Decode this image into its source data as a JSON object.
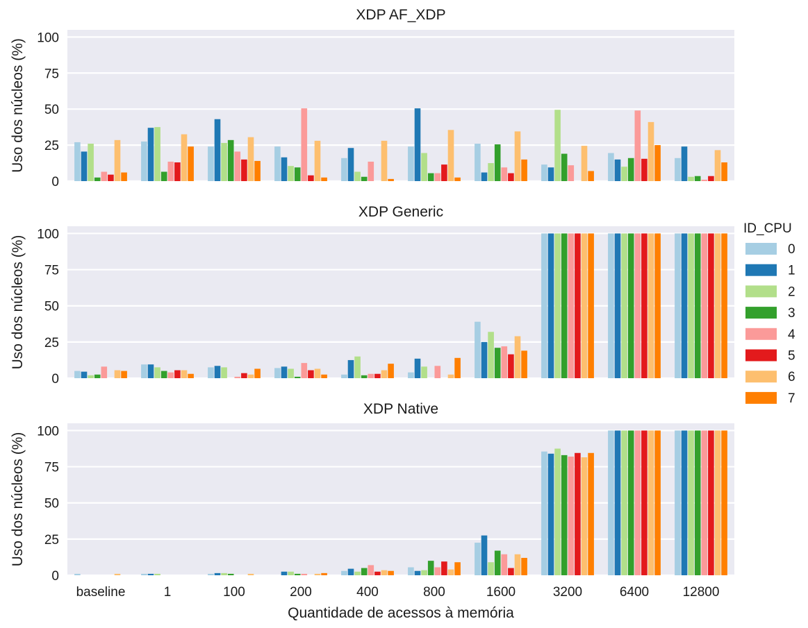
{
  "chart_data": {
    "type": "bar",
    "xlabel": "Quantidade de acessos à memória",
    "ylabel": "Uso dos núcleos (%)",
    "categories": [
      "baseline",
      "1",
      "100",
      "200",
      "400",
      "800",
      "1600",
      "3200",
      "6400",
      "12800"
    ],
    "ylim": [
      0,
      105
    ],
    "yticks": [
      0,
      25,
      50,
      75,
      100
    ],
    "grid": true,
    "legend": {
      "title": "ID_CPU",
      "placement": "right",
      "entries": [
        "0",
        "1",
        "2",
        "3",
        "4",
        "5",
        "6",
        "7"
      ],
      "colors": [
        "#a6cee3",
        "#1f78b4",
        "#b2df8a",
        "#33a02c",
        "#fb9a99",
        "#e31a1c",
        "#fdbf6f",
        "#ff7f00"
      ]
    },
    "panels": [
      {
        "title": "XDP AF_XDP",
        "series": [
          {
            "name": "0",
            "values": [
              27,
              27.5,
              24,
              24,
              16,
              24,
              26,
              11.5,
              19.5,
              16
            ]
          },
          {
            "name": "1",
            "values": [
              20.5,
              37,
              43,
              16.5,
              23,
              50.5,
              6,
              9.5,
              15,
              24
            ]
          },
          {
            "name": "2",
            "values": [
              26,
              37.5,
              26.5,
              10.5,
              6.5,
              19.5,
              12.5,
              49.5,
              10,
              3
            ]
          },
          {
            "name": "3",
            "values": [
              2.5,
              6.5,
              28.5,
              9.5,
              3,
              5.5,
              25.5,
              19,
              16,
              3.5
            ]
          },
          {
            "name": "4",
            "values": [
              6.5,
              13.5,
              20.5,
              50.5,
              13.5,
              5.5,
              9.5,
              11,
              49,
              1
            ]
          },
          {
            "name": "5",
            "values": [
              4.5,
              13,
              15,
              4,
              0,
              11.5,
              5.5,
              0,
              15.5,
              3.5
            ]
          },
          {
            "name": "6",
            "values": [
              28.5,
              32.5,
              30.5,
              28,
              28,
              35.5,
              34.5,
              24.5,
              41,
              21.5
            ]
          },
          {
            "name": "7",
            "values": [
              6,
              24,
              14,
              2.5,
              1.5,
              2.5,
              15,
              7,
              25,
              13
            ]
          }
        ]
      },
      {
        "title": "XDP Generic",
        "series": [
          {
            "name": "0",
            "values": [
              5,
              9.5,
              7.5,
              7,
              2.5,
              4,
              39,
              100,
              100,
              100
            ]
          },
          {
            "name": "1",
            "values": [
              4.5,
              9.5,
              8.5,
              8,
              12.5,
              13.5,
              25,
              100,
              100,
              100
            ]
          },
          {
            "name": "2",
            "values": [
              2,
              7.5,
              7.5,
              6.5,
              15,
              8,
              32,
              100,
              100,
              100
            ]
          },
          {
            "name": "3",
            "values": [
              2.5,
              5,
              0,
              1,
              2,
              0,
              21,
              100,
              100,
              100
            ]
          },
          {
            "name": "4",
            "values": [
              8,
              4,
              1,
              10.5,
              3,
              8.5,
              22,
              100,
              100,
              100
            ]
          },
          {
            "name": "5",
            "values": [
              0,
              5.5,
              3.5,
              5.5,
              3,
              0,
              16.5,
              100,
              100,
              100
            ]
          },
          {
            "name": "6",
            "values": [
              5.5,
              5.5,
              2.5,
              6.5,
              5.5,
              2.5,
              29,
              100,
              100,
              100
            ]
          },
          {
            "name": "7",
            "values": [
              5,
              3,
              6.5,
              2.5,
              10,
              14,
              19,
              100,
              100,
              100
            ]
          }
        ]
      },
      {
        "title": "XDP Native",
        "series": [
          {
            "name": "0",
            "values": [
              1,
              1,
              1,
              0,
              3,
              5.5,
              22.5,
              85.5,
              100,
              100
            ]
          },
          {
            "name": "1",
            "values": [
              0,
              1,
              1.5,
              2.5,
              4.5,
              3,
              27.5,
              84,
              100,
              100
            ]
          },
          {
            "name": "2",
            "values": [
              0,
              1,
              1.5,
              2.5,
              2.5,
              3.5,
              9,
              87.5,
              100,
              100
            ]
          },
          {
            "name": "3",
            "values": [
              0,
              0,
              1,
              1,
              5,
              10,
              17,
              83,
              100,
              100
            ]
          },
          {
            "name": "4",
            "values": [
              0,
              0,
              0,
              1,
              7,
              5.5,
              14.5,
              82,
              100,
              100
            ]
          },
          {
            "name": "5",
            "values": [
              0,
              0,
              0,
              0,
              2.5,
              9.5,
              5,
              84.5,
              100,
              100
            ]
          },
          {
            "name": "6",
            "values": [
              1,
              0,
              1,
              1,
              3.5,
              4,
              14.5,
              81.5,
              100,
              100
            ]
          },
          {
            "name": "7",
            "values": [
              0,
              0,
              0,
              1.5,
              3,
              9,
              12,
              84.5,
              100,
              100
            ]
          }
        ]
      }
    ]
  }
}
